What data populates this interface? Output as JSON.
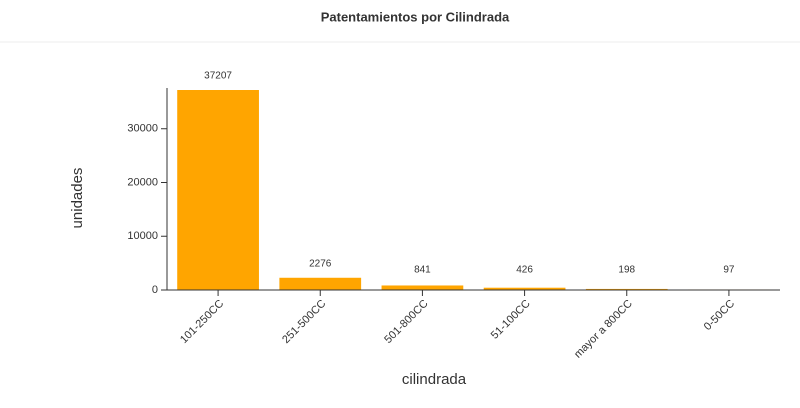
{
  "chart_data": {
    "type": "bar",
    "title": "Patentamientos por Cilindrada",
    "x_label": "cilindrada",
    "y_label": "unidades",
    "categories": [
      "101-250CC",
      "251-500CC",
      "501-800CC",
      "51-100CC",
      "mayor a 800CC",
      "0-50CC"
    ],
    "values": [
      37207,
      2276,
      841,
      426,
      198,
      97
    ],
    "color": "#ffa500",
    "ylim": [
      0,
      37207
    ],
    "yticks": [
      0,
      10000,
      20000,
      30000
    ],
    "grid": false
  }
}
